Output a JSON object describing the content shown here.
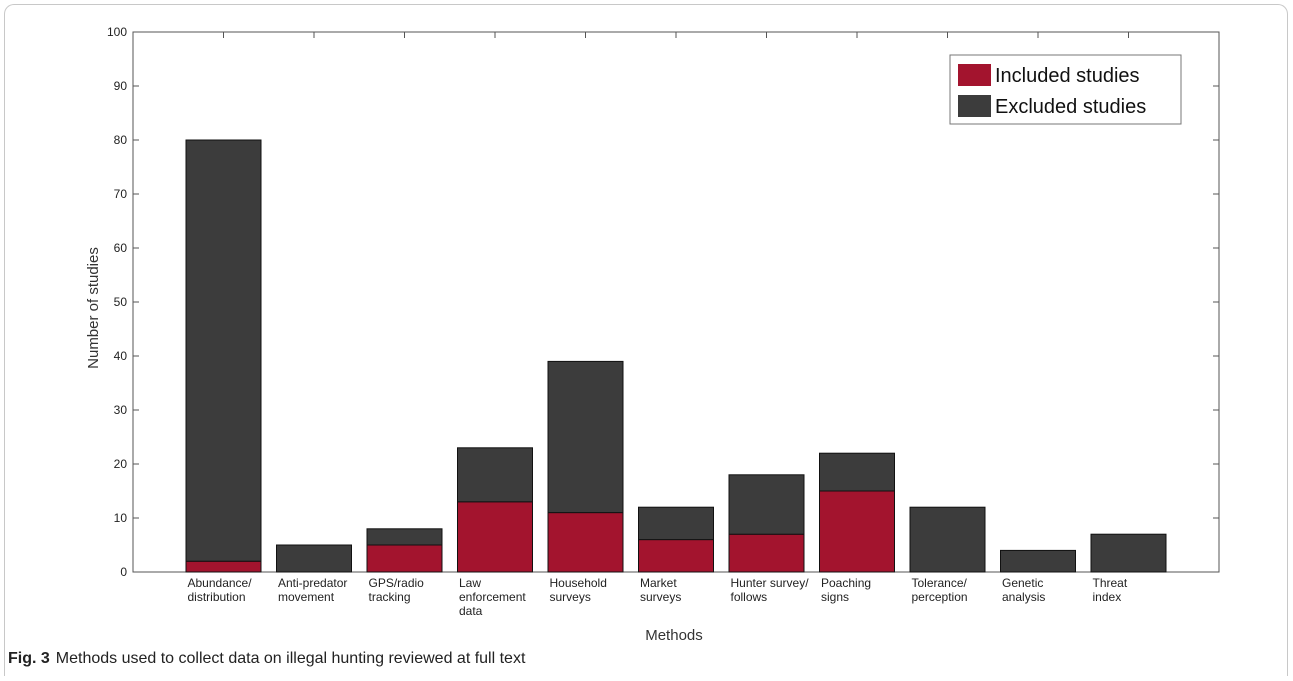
{
  "caption": {
    "label": "Fig. 3",
    "text": "Methods used to collect data on illegal hunting reviewed at full text"
  },
  "colors": {
    "included": "#a3142e",
    "excluded": "#3c3c3c",
    "axis": "#555555"
  },
  "chart_data": {
    "type": "bar",
    "stacked": true,
    "xlabel": "Methods",
    "ylabel": "Number of studies",
    "ylim": [
      0,
      100
    ],
    "yticks": [
      0,
      10,
      20,
      30,
      40,
      50,
      60,
      70,
      80,
      90,
      100
    ],
    "grid": false,
    "legend_position": "top-right",
    "categories": [
      [
        "Abundance/",
        "distribution"
      ],
      [
        "Anti-predator",
        "movement"
      ],
      [
        "GPS/radio",
        "tracking"
      ],
      [
        "Law",
        "enforcement",
        "data"
      ],
      [
        "Household",
        "surveys"
      ],
      [
        "Market",
        "surveys"
      ],
      [
        "Hunter survey/",
        "follows"
      ],
      [
        "Poaching",
        "signs"
      ],
      [
        "Tolerance/",
        "perception"
      ],
      [
        "Genetic",
        "analysis"
      ],
      [
        "Threat",
        "index"
      ]
    ],
    "series": [
      {
        "name": "Included studies",
        "values": [
          2,
          0,
          5,
          13,
          11,
          6,
          7,
          15,
          0,
          0,
          0
        ]
      },
      {
        "name": "Excluded studies",
        "values": [
          78,
          5,
          3,
          10,
          28,
          6,
          11,
          7,
          12,
          4,
          7
        ]
      }
    ]
  }
}
